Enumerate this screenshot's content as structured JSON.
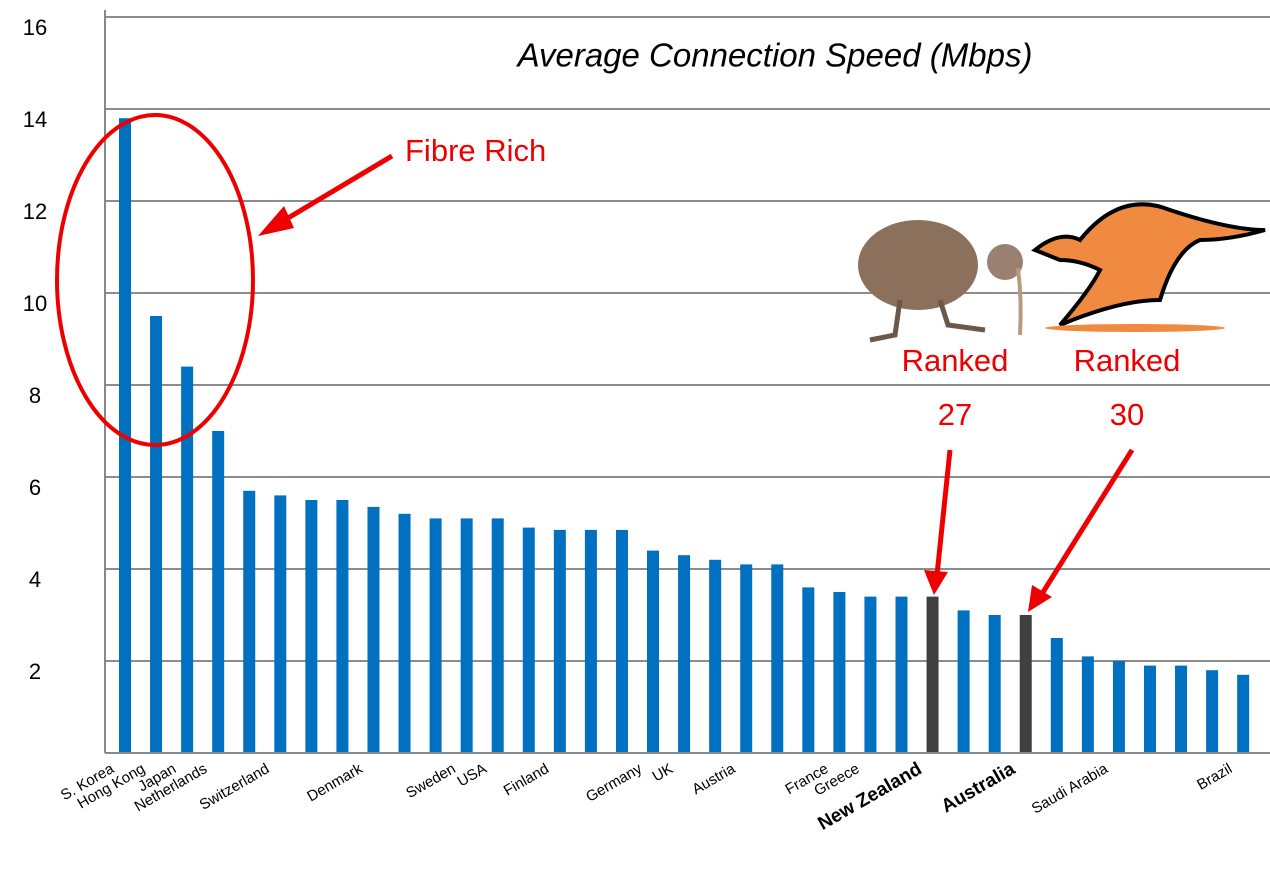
{
  "chart_data": {
    "type": "bar",
    "title": "Average Connection Speed (Mbps)",
    "categories": [
      "S. Korea",
      "Hong Kong",
      "Japan",
      "Netherlands",
      null,
      "Switzerland",
      null,
      null,
      "Denmark",
      null,
      null,
      "Sweden",
      "USA",
      null,
      "Finland",
      null,
      null,
      "Germany",
      "UK",
      null,
      "Austria",
      null,
      null,
      "France",
      "Greece",
      null,
      "New Zealand",
      null,
      null,
      "Australia",
      null,
      null,
      "Saudi Arabia",
      null,
      null,
      null,
      "Brazil"
    ],
    "values": [
      13.8,
      9.5,
      8.4,
      7.0,
      5.7,
      5.6,
      5.5,
      5.5,
      5.35,
      5.2,
      5.1,
      5.1,
      5.1,
      4.9,
      4.85,
      4.85,
      4.85,
      4.4,
      4.3,
      4.2,
      4.1,
      4.1,
      3.6,
      3.5,
      3.4,
      3.4,
      3.4,
      3.1,
      3.0,
      3.0,
      2.5,
      2.1,
      2.0,
      1.9,
      1.9,
      1.8,
      1.7
    ],
    "color": "#0070c0",
    "highlight_color": "#404040",
    "colors": [
      "#0070c0",
      "#0070c0",
      "#0070c0",
      "#0070c0",
      "#0070c0",
      "#0070c0",
      "#0070c0",
      "#0070c0",
      "#0070c0",
      "#0070c0",
      "#0070c0",
      "#0070c0",
      "#0070c0",
      "#0070c0",
      "#0070c0",
      "#0070c0",
      "#0070c0",
      "#0070c0",
      "#0070c0",
      "#0070c0",
      "#0070c0",
      "#0070c0",
      "#0070c0",
      "#0070c0",
      "#0070c0",
      "#0070c0",
      "#404040",
      "#0070c0",
      "#0070c0",
      "#404040",
      "#0070c0",
      "#0070c0",
      "#0070c0",
      "#0070c0",
      "#0070c0",
      "#0070c0",
      "#0070c0"
    ],
    "ylim": [
      0,
      16
    ],
    "yticks": [
      2,
      4,
      6,
      8,
      10,
      12,
      14,
      16
    ],
    "grid": true,
    "annotations": [
      "Fibre Rich",
      "Ranked",
      "27",
      "Ranked",
      "30"
    ]
  }
}
